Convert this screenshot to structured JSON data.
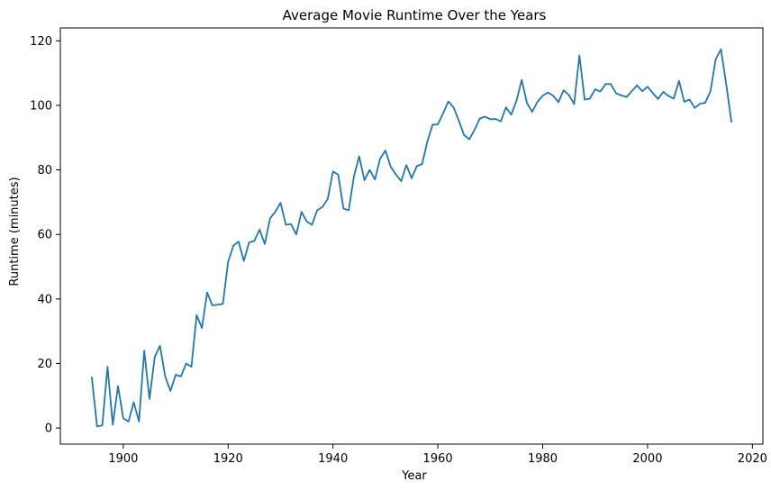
{
  "chart_data": {
    "type": "line",
    "title": "Average Movie Runtime Over the Years",
    "xlabel": "Year",
    "ylabel": "Runtime (minutes)",
    "xlim": [
      1888,
      2022
    ],
    "ylim": [
      -5,
      124
    ],
    "grid": false,
    "x_ticks": [
      1900,
      1920,
      1940,
      1960,
      1980,
      2000,
      2020
    ],
    "y_ticks": [
      0,
      20,
      40,
      60,
      80,
      100,
      120
    ],
    "line_color": "#1f77b4",
    "series": [
      {
        "x": [
          1894,
          1895,
          1896,
          1897,
          1898,
          1899,
          1900,
          1901,
          1902,
          1903,
          1904,
          1905,
          1906,
          1907,
          1908,
          1909,
          1910,
          1911,
          1912,
          1913,
          1914,
          1915,
          1916,
          1917,
          1918,
          1919,
          1920,
          1921,
          1922,
          1923,
          1924,
          1925,
          1926,
          1927,
          1928,
          1929,
          1930,
          1931,
          1932,
          1933,
          1934,
          1935,
          1936,
          1937,
          1938,
          1939,
          1940,
          1941,
          1942,
          1943,
          1944,
          1945,
          1946,
          1947,
          1948,
          1949,
          1950,
          1951,
          1952,
          1953,
          1954,
          1955,
          1956,
          1957,
          1958,
          1959,
          1960,
          1961,
          1962,
          1963,
          1964,
          1965,
          1966,
          1967,
          1968,
          1969,
          1970,
          1971,
          1972,
          1973,
          1974,
          1975,
          1976,
          1977,
          1978,
          1979,
          1980,
          1981,
          1982,
          1983,
          1984,
          1985,
          1986,
          1987,
          1988,
          1989,
          1990,
          1991,
          1992,
          1993,
          1994,
          1995,
          1996,
          1997,
          1998,
          1999,
          2000,
          2001,
          2002,
          2003,
          2004,
          2005,
          2006,
          2007,
          2008,
          2009,
          2010,
          2011,
          2012,
          2013,
          2014,
          2015,
          2016
        ],
        "values": [
          15.7,
          0.5,
          0.8,
          19,
          1,
          13,
          3,
          2,
          8,
          2,
          24,
          9,
          22,
          25.5,
          16,
          11.5,
          16.5,
          16,
          20,
          19,
          35,
          31,
          42,
          38,
          38.2,
          38.5,
          51.5,
          56.5,
          57.8,
          51.8,
          57.5,
          58,
          61.5,
          57,
          65,
          67,
          69.8,
          63,
          63.2,
          60,
          67,
          64,
          63,
          67.5,
          68.5,
          71,
          79.5,
          78.5,
          68,
          67.5,
          78,
          84.2,
          76.8,
          80,
          77,
          83.5,
          86,
          81,
          78.6,
          76.5,
          81.5,
          77.4,
          81.2,
          81.8,
          88.8,
          94,
          94.1,
          97.5,
          101.2,
          99.4,
          95.3,
          90.8,
          89.5,
          92.4,
          95.9,
          96.5,
          95.7,
          95.8,
          95,
          99.4,
          97.1,
          101.4,
          107.9,
          100.7,
          98,
          101.1,
          103,
          104,
          103,
          101,
          104.7,
          103.2,
          100.4,
          115.5,
          101.8,
          102.1,
          105,
          104.3,
          106.6,
          106.6,
          103.7,
          103.1,
          102.6,
          104.4,
          106.2,
          104.4,
          105.8,
          103.8,
          102,
          104.2,
          102.9,
          102.1,
          107.6,
          101.1,
          101.8,
          99.2,
          100.5,
          100.8,
          104.4,
          114.3,
          117.4,
          106.6,
          94.9
        ]
      }
    ]
  }
}
